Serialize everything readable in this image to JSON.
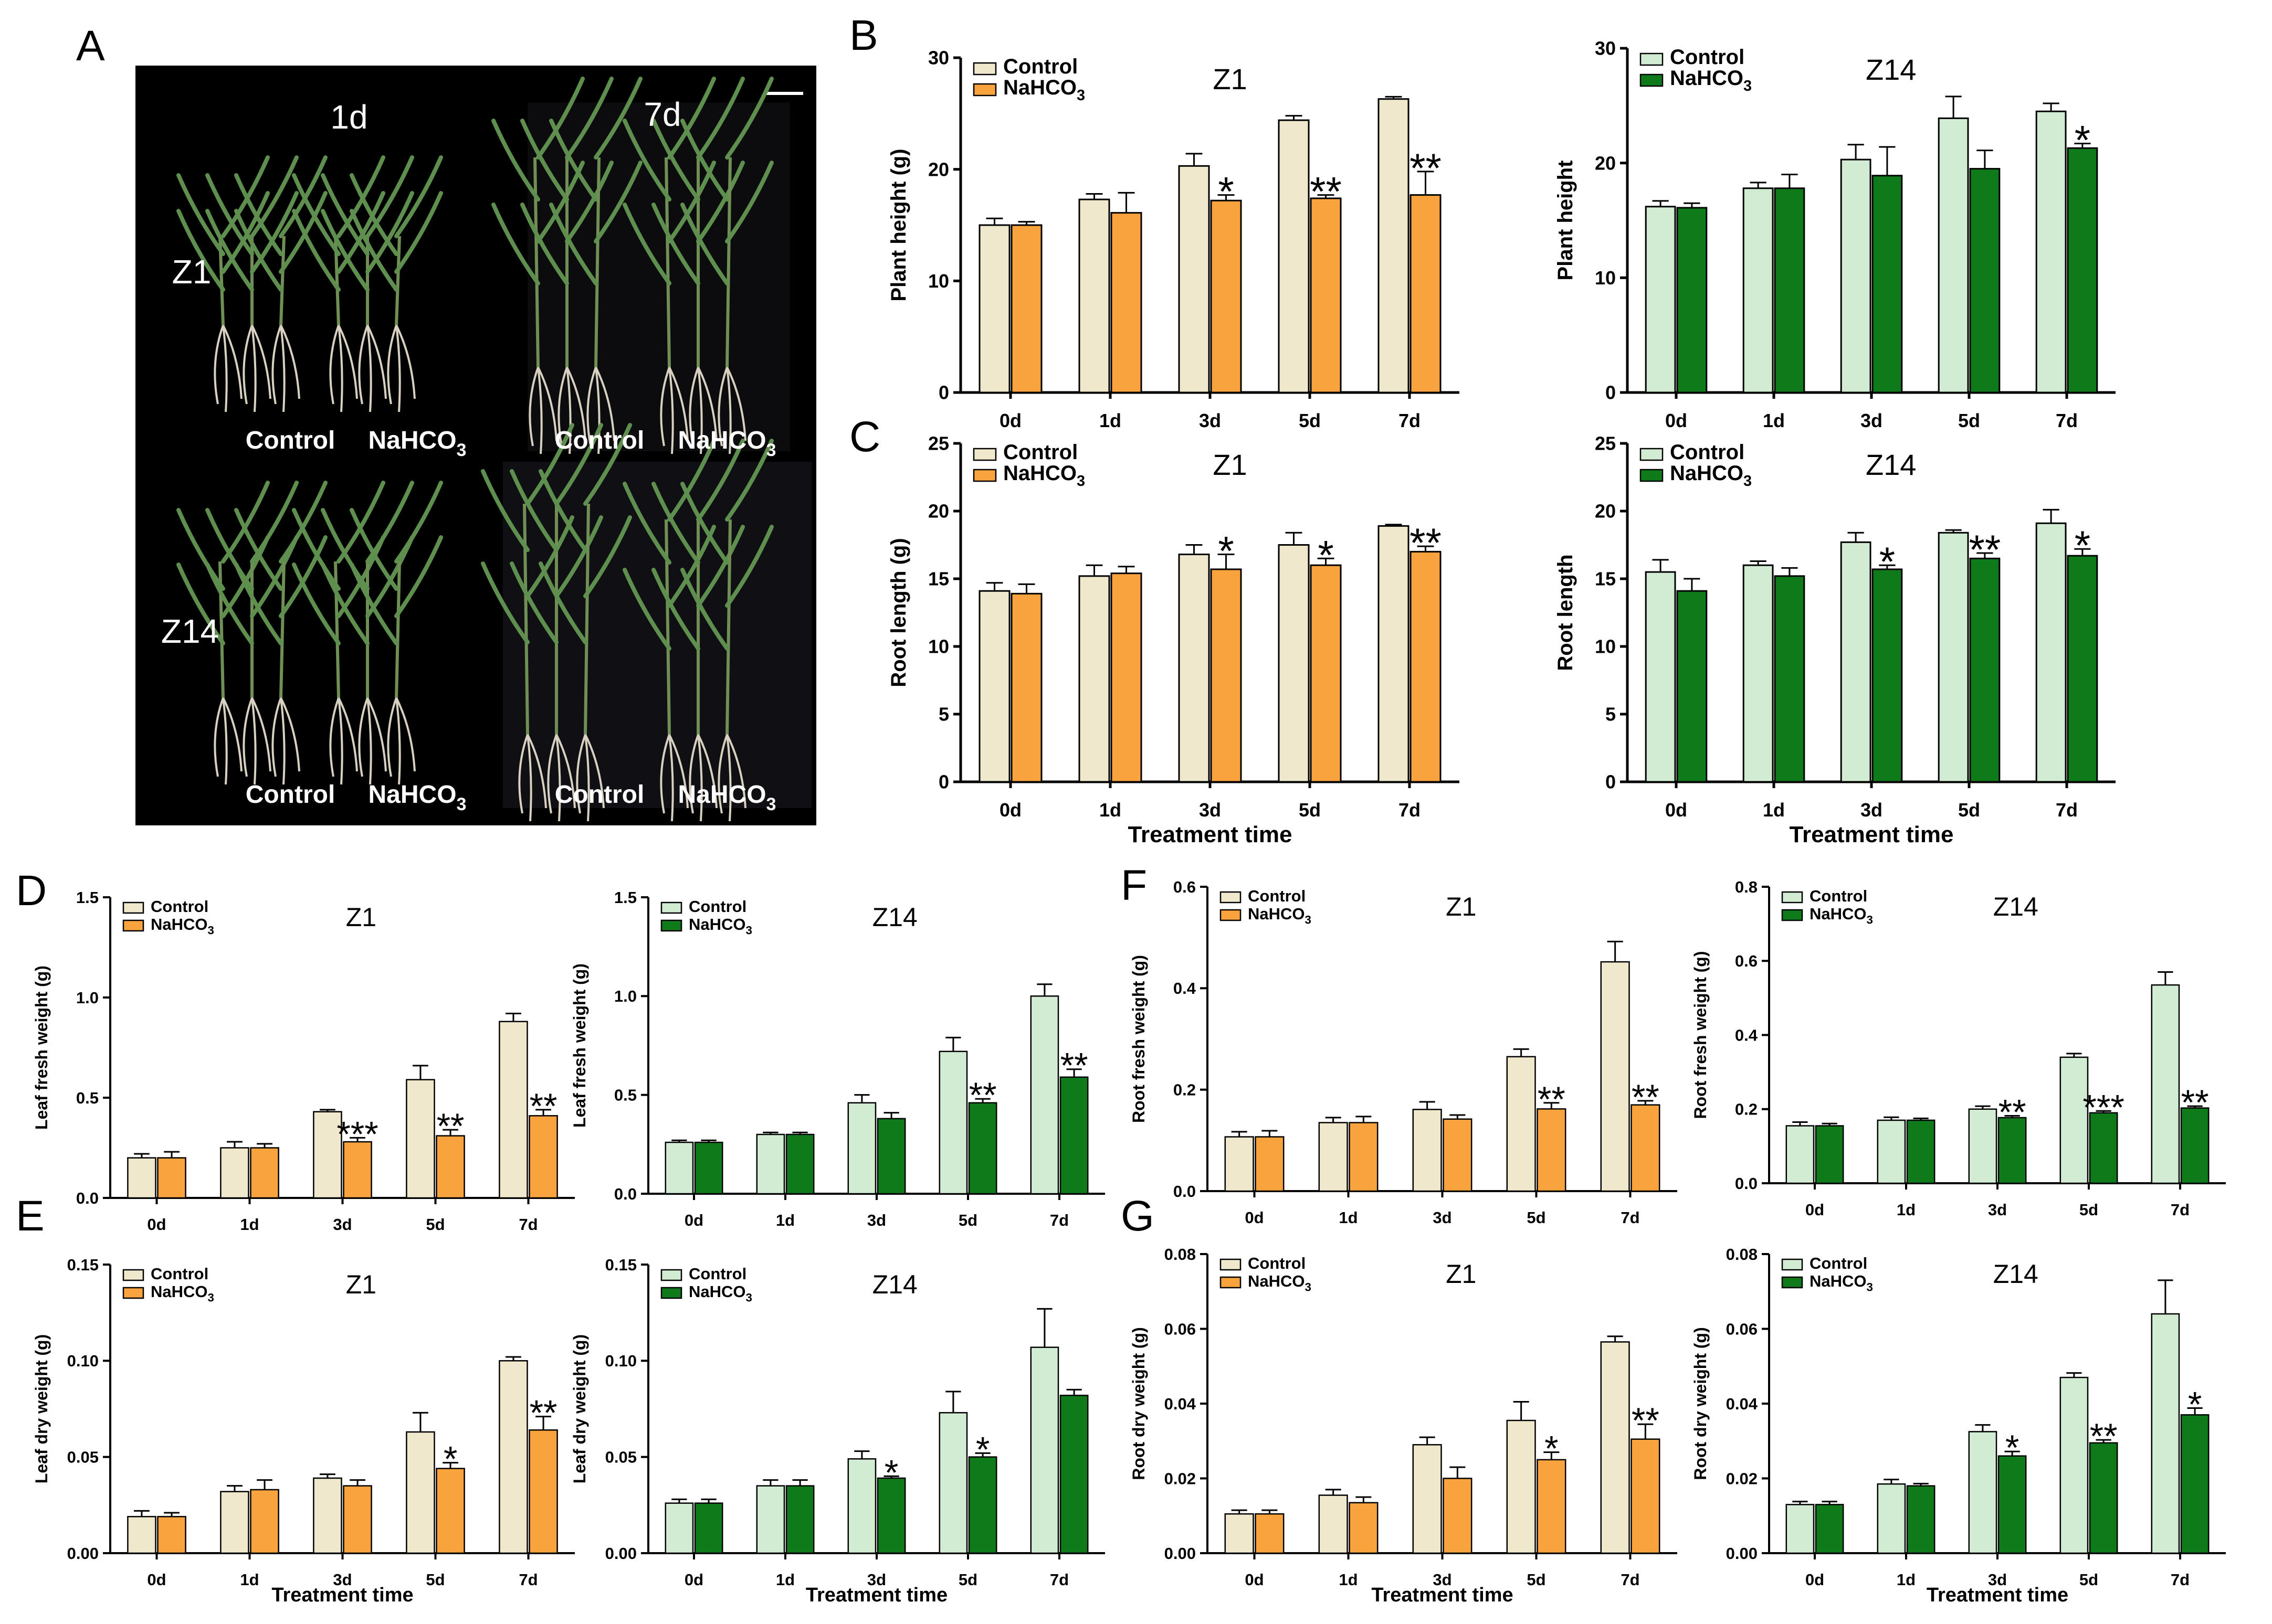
{
  "figure": {
    "panel_letters": [
      "A",
      "B",
      "C",
      "D",
      "E",
      "F",
      "G"
    ],
    "photo": {
      "labels": {
        "d1": "1d",
        "d7": "7d",
        "z1": "Z1",
        "z14": "Z14",
        "control": "Control",
        "nahco3": "NaHCO",
        "sub3": "3"
      }
    },
    "x_title": "Treatment time",
    "legend": {
      "control": "Control",
      "nahco3": "NaHCO",
      "sub3": "3"
    }
  },
  "colors": {
    "z1_control": "#efe8cc",
    "z1_treat": "#f9a33f",
    "z14_control": "#d2ecd4",
    "z14_treat": "#0f7a1a",
    "photo_bg": "#000000"
  },
  "chart_data": [
    {
      "id": "B-Z1",
      "type": "bar",
      "title": "Z1",
      "ylabel": "Plant height (g)",
      "xlabel": "",
      "categories": [
        "0d",
        "1d",
        "3d",
        "5d",
        "7d"
      ],
      "ylim": [
        0,
        30
      ],
      "yticks": [
        "0",
        "10",
        "20",
        "30"
      ],
      "series": [
        {
          "name": "Control",
          "values": [
            15.0,
            17.3,
            20.3,
            24.4,
            26.3
          ],
          "errors": [
            0.6,
            0.5,
            1.1,
            0.4,
            0.2
          ]
        },
        {
          "name": "NaHCO3",
          "values": [
            15.0,
            16.1,
            17.2,
            17.4,
            17.7
          ],
          "errors": [
            0.3,
            1.8,
            0.5,
            0.3,
            2.1
          ]
        }
      ],
      "significance": [
        "",
        "",
        "*",
        "**",
        "**"
      ]
    },
    {
      "id": "B-Z14",
      "type": "bar",
      "title": "Z14",
      "ylabel": "Plant height",
      "xlabel": "",
      "categories": [
        "0d",
        "1d",
        "3d",
        "5d",
        "7d"
      ],
      "ylim": [
        0,
        30
      ],
      "yticks": [
        "0",
        "10",
        "20",
        "30"
      ],
      "series": [
        {
          "name": "Control",
          "values": [
            16.2,
            17.8,
            20.3,
            23.9,
            24.5
          ],
          "errors": [
            0.5,
            0.5,
            1.3,
            1.9,
            0.7
          ]
        },
        {
          "name": "NaHCO3",
          "values": [
            16.1,
            17.8,
            18.9,
            19.5,
            21.3
          ],
          "errors": [
            0.4,
            1.2,
            2.5,
            1.6,
            0.4
          ]
        }
      ],
      "significance": [
        "",
        "",
        "",
        "",
        "*"
      ]
    },
    {
      "id": "C-Z1",
      "type": "bar",
      "title": "Z1",
      "ylabel": "Root length (g)",
      "xlabel": "Treatment time",
      "categories": [
        "0d",
        "1d",
        "3d",
        "5d",
        "7d"
      ],
      "ylim": [
        0,
        25
      ],
      "yticks": [
        "0",
        "5",
        "10",
        "15",
        "20",
        "25"
      ],
      "series": [
        {
          "name": "Control",
          "values": [
            14.1,
            15.2,
            16.8,
            17.5,
            18.9
          ],
          "errors": [
            0.6,
            0.8,
            0.7,
            0.9,
            0.1
          ]
        },
        {
          "name": "NaHCO3",
          "values": [
            13.9,
            15.4,
            15.7,
            16.0,
            17.0
          ],
          "errors": [
            0.7,
            0.5,
            1.1,
            0.5,
            0.4
          ]
        }
      ],
      "significance": [
        "",
        "",
        "*",
        "*",
        "**"
      ]
    },
    {
      "id": "C-Z14",
      "type": "bar",
      "title": "Z14",
      "ylabel": "Root length",
      "xlabel": "Treatment time",
      "categories": [
        "0d",
        "1d",
        "3d",
        "5d",
        "7d"
      ],
      "ylim": [
        0,
        25
      ],
      "yticks": [
        "0",
        "5",
        "10",
        "15",
        "20",
        "25"
      ],
      "series": [
        {
          "name": "Control",
          "values": [
            15.5,
            16.0,
            17.7,
            18.4,
            19.1
          ],
          "errors": [
            0.9,
            0.3,
            0.7,
            0.2,
            1.0
          ]
        },
        {
          "name": "NaHCO3",
          "values": [
            14.1,
            15.2,
            15.7,
            16.5,
            16.7
          ],
          "errors": [
            0.9,
            0.6,
            0.3,
            0.4,
            0.5
          ]
        }
      ],
      "significance": [
        "",
        "",
        "*",
        "**",
        "*"
      ]
    },
    {
      "id": "D-Z1",
      "type": "bar",
      "title": "Z1",
      "ylabel": "Leaf fresh weight (g)",
      "xlabel": "",
      "categories": [
        "0d",
        "1d",
        "3d",
        "5d",
        "7d"
      ],
      "ylim": [
        0,
        1.5
      ],
      "yticks": [
        "0.0",
        "0.5",
        "1.0",
        "1.5"
      ],
      "series": [
        {
          "name": "Control",
          "values": [
            0.2,
            0.25,
            0.43,
            0.59,
            0.88
          ],
          "errors": [
            0.02,
            0.03,
            0.01,
            0.07,
            0.04
          ]
        },
        {
          "name": "NaHCO3",
          "values": [
            0.2,
            0.25,
            0.28,
            0.31,
            0.41
          ],
          "errors": [
            0.03,
            0.02,
            0.02,
            0.03,
            0.03
          ]
        }
      ],
      "significance": [
        "",
        "",
        "***",
        "**",
        "**"
      ]
    },
    {
      "id": "D-Z14",
      "type": "bar",
      "title": "Z14",
      "ylabel": "Leaf fresh weight (g)",
      "xlabel": "",
      "categories": [
        "0d",
        "1d",
        "3d",
        "5d",
        "7d"
      ],
      "ylim": [
        0,
        1.5
      ],
      "yticks": [
        "0.0",
        "0.5",
        "1.0",
        "1.5"
      ],
      "series": [
        {
          "name": "Control",
          "values": [
            0.26,
            0.3,
            0.46,
            0.72,
            1.0
          ],
          "errors": [
            0.01,
            0.01,
            0.04,
            0.07,
            0.06
          ]
        },
        {
          "name": "NaHCO3",
          "values": [
            0.26,
            0.3,
            0.38,
            0.46,
            0.59
          ],
          "errors": [
            0.01,
            0.01,
            0.03,
            0.02,
            0.04
          ]
        }
      ],
      "significance": [
        "",
        "",
        "",
        "**",
        "**"
      ]
    },
    {
      "id": "E-Z1",
      "type": "bar",
      "title": "Z1",
      "ylabel": "Leaf dry weight (g)",
      "xlabel": "Treatment time",
      "categories": [
        "0d",
        "1d",
        "3d",
        "5d",
        "7d"
      ],
      "ylim": [
        0,
        0.15
      ],
      "yticks": [
        "0.00",
        "0.05",
        "0.10",
        "0.15"
      ],
      "series": [
        {
          "name": "Control",
          "values": [
            0.019,
            0.032,
            0.039,
            0.063,
            0.1
          ],
          "errors": [
            0.003,
            0.003,
            0.002,
            0.01,
            0.002
          ]
        },
        {
          "name": "NaHCO3",
          "values": [
            0.019,
            0.033,
            0.035,
            0.044,
            0.064
          ],
          "errors": [
            0.002,
            0.005,
            0.003,
            0.003,
            0.007
          ]
        }
      ],
      "significance": [
        "",
        "",
        "",
        "*",
        "**"
      ]
    },
    {
      "id": "E-Z14",
      "type": "bar",
      "title": "Z14",
      "ylabel": "Leaf dry weight (g)",
      "xlabel": "Treatment time",
      "categories": [
        "0d",
        "1d",
        "3d",
        "5d",
        "7d"
      ],
      "ylim": [
        0,
        0.15
      ],
      "yticks": [
        "0.00",
        "0.05",
        "0.10",
        "0.15"
      ],
      "series": [
        {
          "name": "Control",
          "values": [
            0.026,
            0.035,
            0.049,
            0.073,
            0.107
          ],
          "errors": [
            0.002,
            0.003,
            0.004,
            0.011,
            0.02
          ]
        },
        {
          "name": "NaHCO3",
          "values": [
            0.026,
            0.035,
            0.039,
            0.05,
            0.082
          ],
          "errors": [
            0.002,
            0.003,
            0.001,
            0.002,
            0.003
          ]
        }
      ],
      "significance": [
        "",
        "",
        "*",
        "*",
        ""
      ]
    },
    {
      "id": "F-Z1",
      "type": "bar",
      "title": "Z1",
      "ylabel": "Root fresh weight (g)",
      "xlabel": "",
      "categories": [
        "0d",
        "1d",
        "3d",
        "5d",
        "7d"
      ],
      "ylim": [
        0,
        0.6
      ],
      "yticks": [
        "0.0",
        "0.2",
        "0.4",
        "0.6"
      ],
      "series": [
        {
          "name": "Control",
          "values": [
            0.107,
            0.135,
            0.161,
            0.265,
            0.452
          ],
          "errors": [
            0.01,
            0.01,
            0.015,
            0.015,
            0.04
          ]
        },
        {
          "name": "NaHCO3",
          "values": [
            0.107,
            0.135,
            0.142,
            0.162,
            0.17
          ],
          "errors": [
            0.012,
            0.012,
            0.008,
            0.012,
            0.008
          ]
        }
      ],
      "significance": [
        "",
        "",
        "",
        "**",
        "**"
      ]
    },
    {
      "id": "F-Z14",
      "type": "bar",
      "title": "Z14",
      "ylabel": "Root fresh weight (g)",
      "xlabel": "",
      "categories": [
        "0d",
        "1d",
        "3d",
        "5d",
        "7d"
      ],
      "ylim": [
        0,
        0.8
      ],
      "yticks": [
        "0.0",
        "0.2",
        "0.4",
        "0.6",
        "0.8"
      ],
      "series": [
        {
          "name": "Control",
          "values": [
            0.155,
            0.17,
            0.2,
            0.34,
            0.535
          ],
          "errors": [
            0.01,
            0.008,
            0.008,
            0.01,
            0.035
          ]
        },
        {
          "name": "NaHCO3",
          "values": [
            0.155,
            0.17,
            0.177,
            0.19,
            0.203
          ],
          "errors": [
            0.006,
            0.005,
            0.005,
            0.005,
            0.005
          ]
        }
      ],
      "significance": [
        "",
        "",
        "**",
        "***",
        "**"
      ]
    },
    {
      "id": "G-Z1",
      "type": "bar",
      "title": "Z1",
      "ylabel": "Root dry weight (g)",
      "xlabel": "Treatment time",
      "categories": [
        "0d",
        "1d",
        "3d",
        "5d",
        "7d"
      ],
      "ylim": [
        0,
        0.08
      ],
      "yticks": [
        "0.00",
        "0.02",
        "0.04",
        "0.06",
        "0.08"
      ],
      "series": [
        {
          "name": "Control",
          "values": [
            0.0105,
            0.0155,
            0.029,
            0.0355,
            0.0565
          ],
          "errors": [
            0.001,
            0.0015,
            0.002,
            0.005,
            0.0015
          ]
        },
        {
          "name": "NaHCO3",
          "values": [
            0.0105,
            0.0135,
            0.02,
            0.025,
            0.0305
          ],
          "errors": [
            0.001,
            0.0015,
            0.003,
            0.002,
            0.004
          ]
        }
      ],
      "significance": [
        "",
        "",
        "",
        "*",
        "**"
      ]
    },
    {
      "id": "G-Z14",
      "type": "bar",
      "title": "Z14",
      "ylabel": "Root dry weight (g)",
      "xlabel": "Treatment time",
      "categories": [
        "0d",
        "1d",
        "3d",
        "5d",
        "7d"
      ],
      "ylim": [
        0,
        0.08
      ],
      "yticks": [
        "0.00",
        "0.02",
        "0.04",
        "0.06",
        "0.08"
      ],
      "series": [
        {
          "name": "Control",
          "values": [
            0.013,
            0.0185,
            0.0325,
            0.047,
            0.064
          ],
          "errors": [
            0.0008,
            0.0012,
            0.0018,
            0.0012,
            0.009
          ]
        },
        {
          "name": "NaHCO3",
          "values": [
            0.013,
            0.018,
            0.026,
            0.0295,
            0.037
          ],
          "errors": [
            0.0008,
            0.0006,
            0.0012,
            0.0008,
            0.0018
          ]
        }
      ],
      "significance": [
        "",
        "",
        "*",
        "**",
        "*"
      ]
    }
  ]
}
